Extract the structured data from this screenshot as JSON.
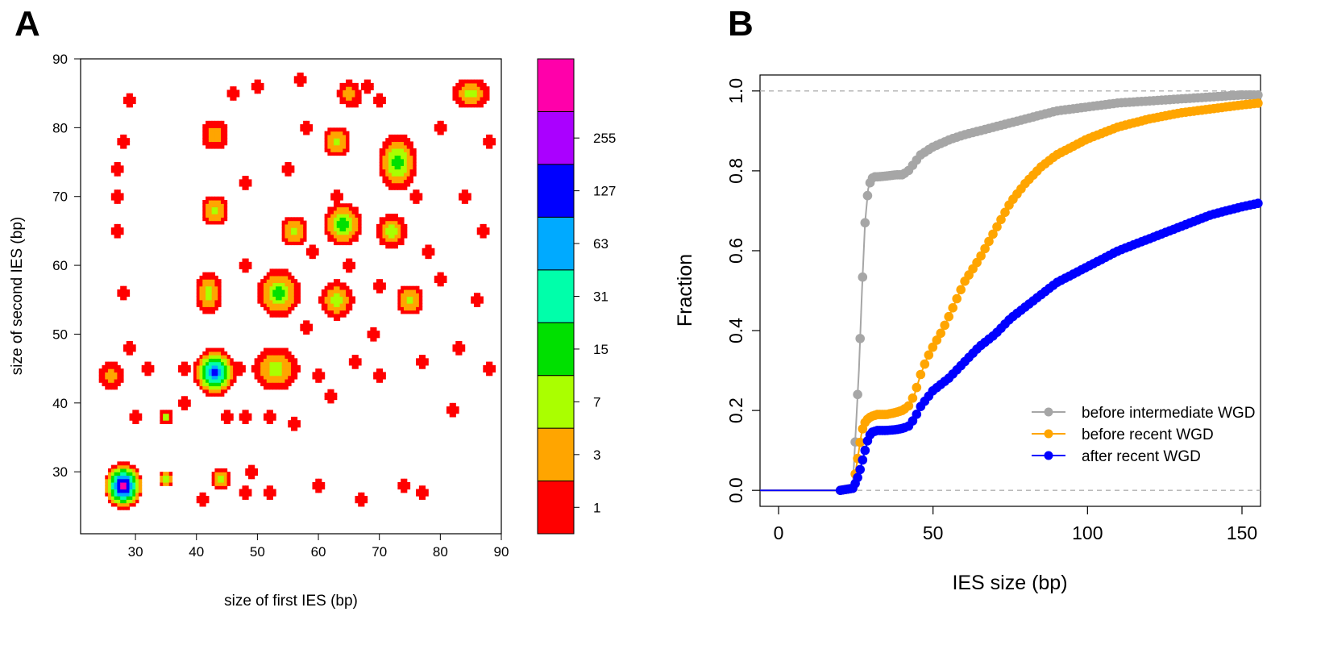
{
  "panels": {
    "a_label": "A",
    "b_label": "B"
  },
  "chart_data": [
    {
      "type": "heatmap",
      "panel": "A",
      "title": "",
      "xlabel": "size of first IES (bp)",
      "ylabel": "size of second IES (bp)",
      "xlim": [
        21,
        90
      ],
      "ylim": [
        21,
        90
      ],
      "xticks": [
        30,
        40,
        50,
        60,
        70,
        80,
        90
      ],
      "yticks": [
        30,
        40,
        50,
        60,
        70,
        80,
        90
      ],
      "colorbar": {
        "levels": [
          "1",
          "3",
          "7",
          "15",
          "31",
          "63",
          "127",
          "255"
        ],
        "colors": [
          "#ff0000",
          "#ffa500",
          "#aaff00",
          "#00e000",
          "#00ffaa",
          "#00aaff",
          "#0000ff",
          "#aa00ff",
          "#ff00aa"
        ]
      },
      "regions": [
        {
          "x": 28,
          "y": 28,
          "rx": 3.2,
          "ry": 3.4,
          "max": 8
        },
        {
          "x": 43,
          "y": 44.5,
          "rx": 3.5,
          "ry": 3.5,
          "max": 6
        },
        {
          "x": 53.5,
          "y": 56,
          "rx": 3.5,
          "ry": 3.5,
          "max": 3
        },
        {
          "x": 42,
          "y": 56,
          "rx": 2.2,
          "ry": 3.2,
          "max": 2
        },
        {
          "x": 64,
          "y": 66,
          "rx": 3.2,
          "ry": 3.2,
          "max": 3
        },
        {
          "x": 73,
          "y": 75,
          "rx": 3.2,
          "ry": 4.2,
          "max": 3
        },
        {
          "x": 72,
          "y": 65,
          "rx": 2.5,
          "ry": 2.5,
          "max": 2
        },
        {
          "x": 53,
          "y": 45,
          "rx": 3.8,
          "ry": 3.2,
          "max": 2
        },
        {
          "x": 63,
          "y": 55,
          "rx": 2.8,
          "ry": 2.8,
          "max": 2
        },
        {
          "x": 43,
          "y": 68,
          "rx": 2.2,
          "ry": 2.2,
          "max": 2
        },
        {
          "x": 43,
          "y": 79,
          "rx": 2.2,
          "ry": 2.2,
          "max": 1
        },
        {
          "x": 63,
          "y": 78,
          "rx": 2.2,
          "ry": 2.2,
          "max": 2
        },
        {
          "x": 56,
          "y": 65,
          "rx": 2.2,
          "ry": 2.2,
          "max": 2
        },
        {
          "x": 75,
          "y": 55,
          "rx": 2.2,
          "ry": 2.2,
          "max": 2
        },
        {
          "x": 65,
          "y": 85,
          "rx": 1.8,
          "ry": 1.8,
          "max": 1
        },
        {
          "x": 85,
          "y": 85,
          "rx": 3.0,
          "ry": 2.2,
          "max": 2
        },
        {
          "x": 44,
          "y": 29,
          "rx": 1.6,
          "ry": 1.6,
          "max": 2
        },
        {
          "x": 35,
          "y": 29,
          "rx": 1.2,
          "ry": 1.2,
          "max": 2
        },
        {
          "x": 35,
          "y": 38,
          "rx": 1.2,
          "ry": 1.0,
          "max": 2
        },
        {
          "x": 26,
          "y": 44,
          "rx": 2.0,
          "ry": 2.2,
          "max": 1
        }
      ],
      "noise": [
        [
          66,
          84
        ],
        [
          68,
          86
        ],
        [
          63,
          70
        ],
        [
          59,
          62
        ],
        [
          48,
          72
        ],
        [
          48,
          60
        ],
        [
          50,
          86
        ],
        [
          57,
          87
        ],
        [
          78,
          62
        ],
        [
          80,
          58
        ],
        [
          84,
          70
        ],
        [
          87,
          65
        ],
        [
          88,
          78
        ],
        [
          86,
          55
        ],
        [
          83,
          48
        ],
        [
          88,
          45
        ],
        [
          70,
          44
        ],
        [
          66,
          46
        ],
        [
          77,
          46
        ],
        [
          60,
          44
        ],
        [
          45,
          38
        ],
        [
          48,
          38
        ],
        [
          30,
          38
        ],
        [
          38,
          45
        ],
        [
          32,
          45
        ],
        [
          28,
          56
        ],
        [
          29,
          48
        ],
        [
          27,
          65
        ],
        [
          27,
          70
        ],
        [
          28,
          78
        ],
        [
          27,
          74
        ],
        [
          29,
          84
        ],
        [
          52,
          38
        ],
        [
          56,
          37
        ],
        [
          62,
          41
        ],
        [
          67,
          26
        ],
        [
          74,
          28
        ],
        [
          77,
          27
        ],
        [
          60,
          28
        ],
        [
          52,
          27
        ],
        [
          48,
          27
        ],
        [
          47,
          45
        ],
        [
          58,
          51
        ],
        [
          70,
          57
        ],
        [
          76,
          70
        ],
        [
          80,
          80
        ],
        [
          70,
          84
        ],
        [
          58,
          80
        ],
        [
          46,
          85
        ],
        [
          55,
          74
        ],
        [
          65,
          60
        ],
        [
          69,
          50
        ],
        [
          49,
          30
        ],
        [
          41,
          26
        ],
        [
          38,
          40
        ],
        [
          82,
          39
        ]
      ]
    },
    {
      "type": "scatter",
      "panel": "B",
      "title": "",
      "xlabel": "IES size (bp)",
      "ylabel": "Fraction",
      "xlim": [
        -6,
        156
      ],
      "ylim": [
        -0.04,
        1.04
      ],
      "xticks": [
        "0",
        "50",
        "100",
        "150"
      ],
      "yticks": [
        "0.0",
        "0.2",
        "0.4",
        "0.6",
        "0.8",
        "1.0"
      ],
      "reference_lines": [
        0,
        1
      ],
      "legend_position": "bottom-right",
      "series": [
        {
          "name": "before intermediate WGD",
          "color": "#a6a6a6",
          "x": [
            -6,
            20,
            24,
            25,
            26,
            27,
            28,
            29,
            30,
            31,
            32,
            35,
            38,
            40,
            42,
            44,
            46,
            48,
            50,
            53,
            56,
            60,
            65,
            70,
            75,
            80,
            85,
            90,
            100,
            110,
            120,
            130,
            140,
            150,
            156
          ],
          "y": [
            0,
            0,
            0.005,
            0.15,
            0.3,
            0.5,
            0.67,
            0.755,
            0.78,
            0.785,
            0.785,
            0.787,
            0.79,
            0.79,
            0.8,
            0.82,
            0.84,
            0.85,
            0.86,
            0.87,
            0.88,
            0.89,
            0.9,
            0.91,
            0.92,
            0.93,
            0.94,
            0.95,
            0.96,
            0.97,
            0.975,
            0.98,
            0.985,
            0.99,
            0.99
          ]
        },
        {
          "name": "before recent WGD",
          "color": "#ffa500",
          "x": [
            -6,
            20,
            24,
            25,
            26,
            27,
            28,
            29,
            30,
            32,
            35,
            38,
            40,
            42,
            44,
            46,
            48,
            50,
            53,
            56,
            60,
            65,
            70,
            75,
            80,
            85,
            90,
            95,
            100,
            110,
            120,
            130,
            140,
            150,
            156
          ],
          "y": [
            0,
            0,
            0.005,
            0.05,
            0.1,
            0.15,
            0.17,
            0.18,
            0.185,
            0.19,
            0.19,
            0.195,
            0.2,
            0.21,
            0.24,
            0.29,
            0.33,
            0.36,
            0.4,
            0.45,
            0.52,
            0.58,
            0.65,
            0.72,
            0.77,
            0.81,
            0.84,
            0.86,
            0.88,
            0.91,
            0.93,
            0.945,
            0.955,
            0.965,
            0.97
          ]
        },
        {
          "name": "after recent WGD",
          "color": "#0000ff",
          "x": [
            -6,
            20,
            24,
            25,
            26,
            27,
            28,
            29,
            30,
            32,
            35,
            38,
            40,
            42,
            44,
            46,
            48,
            50,
            55,
            60,
            65,
            70,
            75,
            80,
            85,
            90,
            95,
            100,
            110,
            120,
            130,
            140,
            150,
            156
          ],
          "y": [
            0,
            0,
            0.005,
            0.02,
            0.04,
            0.07,
            0.1,
            0.13,
            0.145,
            0.15,
            0.15,
            0.152,
            0.155,
            0.16,
            0.18,
            0.21,
            0.23,
            0.25,
            0.28,
            0.32,
            0.36,
            0.39,
            0.43,
            0.46,
            0.49,
            0.52,
            0.54,
            0.56,
            0.6,
            0.63,
            0.66,
            0.69,
            0.71,
            0.72
          ]
        }
      ]
    }
  ]
}
